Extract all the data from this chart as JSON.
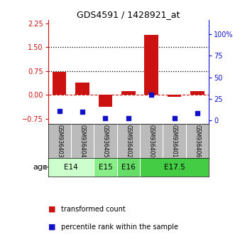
{
  "title": "GDS4591 / 1428921_at",
  "samples": [
    "GSM936403",
    "GSM936404",
    "GSM936405",
    "GSM936402",
    "GSM936400",
    "GSM936401",
    "GSM936406"
  ],
  "transformed_counts": [
    0.72,
    0.38,
    -0.38,
    0.12,
    1.88,
    -0.05,
    0.12
  ],
  "percentile_ranks": [
    8,
    7,
    1,
    1,
    25,
    1,
    6
  ],
  "age_groups": [
    {
      "label": "E14",
      "start": 0,
      "end": 2,
      "color": "#ccffcc"
    },
    {
      "label": "E15",
      "start": 2,
      "end": 3,
      "color": "#88ee88"
    },
    {
      "label": "E16",
      "start": 3,
      "end": 4,
      "color": "#66dd66"
    },
    {
      "label": "E17.5",
      "start": 4,
      "end": 7,
      "color": "#44cc44"
    }
  ],
  "ylim_left": [
    -0.9,
    2.35
  ],
  "ylim_right": [
    -3.75,
    116.25
  ],
  "yticks_left": [
    -0.75,
    0,
    0.75,
    1.5,
    2.25
  ],
  "yticks_right": [
    0,
    25,
    50,
    75,
    100
  ],
  "hlines": [
    0.75,
    1.5
  ],
  "bar_color": "#cc1111",
  "dot_color": "#1111cc",
  "background_color": "#ffffff",
  "sample_bg": "#bbbbbb",
  "legend_items": [
    "transformed count",
    "percentile rank within the sample"
  ]
}
